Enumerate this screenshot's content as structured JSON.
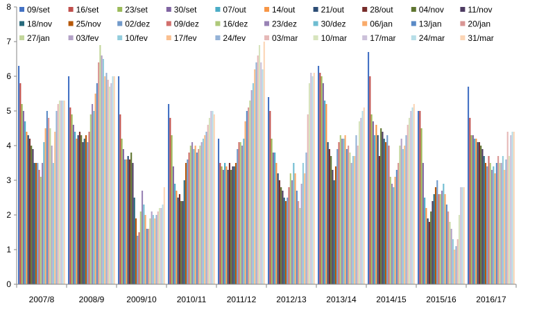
{
  "chart_data": {
    "type": "bar",
    "title": "",
    "xlabel": "",
    "ylabel": "",
    "ylim": [
      0,
      8
    ],
    "yticks": [
      "0",
      "1",
      "2",
      "3",
      "4",
      "5",
      "6",
      "7",
      "8"
    ],
    "grid": false,
    "legend_position": "top",
    "categories": [
      "2007/8",
      "2008/9",
      "2009/10",
      "2010/11",
      "2011/12",
      "2012/13",
      "2013/14",
      "2014/15",
      "2015/16",
      "2016/17"
    ],
    "series": [
      {
        "name": "09/set",
        "color": "#4472c4",
        "values": [
          6.3,
          6.0,
          6.0,
          5.2,
          4.2,
          5.4,
          6.3,
          6.7,
          5.0,
          5.7
        ]
      },
      {
        "name": "16/set",
        "color": "#c0504d",
        "values": [
          5.8,
          5.1,
          4.9,
          4.8,
          3.5,
          5.0,
          6.1,
          6.0,
          5.0,
          4.8
        ]
      },
      {
        "name": "23/set",
        "color": "#9bbb59",
        "values": [
          5.2,
          4.9,
          4.2,
          4.3,
          3.4,
          4.2,
          6.0,
          4.9,
          4.5,
          4.3
        ]
      },
      {
        "name": "30/set",
        "color": "#8064a2",
        "values": [
          5.0,
          4.6,
          3.9,
          3.4,
          3.3,
          3.8,
          5.8,
          4.7,
          3.5,
          4.3
        ]
      },
      {
        "name": "07/out",
        "color": "#4bacc6",
        "values": [
          4.7,
          4.4,
          3.6,
          2.9,
          3.5,
          3.8,
          5.3,
          4.3,
          2.5,
          4.2
        ]
      },
      {
        "name": "14/out",
        "color": "#f79646",
        "values": [
          4.4,
          4.2,
          3.6,
          2.7,
          3.4,
          3.5,
          5.2,
          4.6,
          2.2,
          4.2
        ]
      },
      {
        "name": "21/out",
        "color": "#2c4d75",
        "values": [
          4.3,
          4.3,
          3.7,
          2.5,
          3.3,
          3.2,
          4.1,
          4.3,
          1.9,
          4.1
        ]
      },
      {
        "name": "28/out",
        "color": "#772c2a",
        "values": [
          4.2,
          4.4,
          3.6,
          2.6,
          3.5,
          3.0,
          3.9,
          3.7,
          1.8,
          4.1
        ]
      },
      {
        "name": "04/nov",
        "color": "#5f7530",
        "values": [
          4.0,
          4.3,
          3.8,
          2.4,
          3.3,
          2.8,
          3.7,
          4.5,
          2.1,
          4.0
        ]
      },
      {
        "name": "11/nov",
        "color": "#4d3b62",
        "values": [
          3.9,
          4.1,
          3.5,
          2.4,
          3.4,
          2.7,
          3.3,
          4.4,
          2.4,
          3.9
        ]
      },
      {
        "name": "18/nov",
        "color": "#276a7c",
        "values": [
          3.5,
          4.2,
          2.5,
          3.0,
          3.4,
          2.5,
          3.0,
          4.2,
          2.6,
          3.7
        ]
      },
      {
        "name": "25/nov",
        "color": "#b65708",
        "values": [
          3.5,
          4.3,
          1.9,
          3.5,
          3.5,
          2.4,
          3.4,
          4.1,
          2.8,
          3.5
        ]
      },
      {
        "name": "02/dez",
        "color": "#729aca",
        "values": [
          3.5,
          4.1,
          1.4,
          3.6,
          3.9,
          2.5,
          3.9,
          4.3,
          3.0,
          3.4
        ]
      },
      {
        "name": "09/dez",
        "color": "#d16f6c",
        "values": [
          3.3,
          4.4,
          1.5,
          3.8,
          4.1,
          2.8,
          4.1,
          4.0,
          2.6,
          3.7
        ]
      },
      {
        "name": "16/dez",
        "color": "#afc97a",
        "values": [
          3.1,
          4.9,
          2.1,
          4.0,
          4.1,
          3.2,
          4.3,
          3.1,
          2.6,
          3.5
        ]
      },
      {
        "name": "23/dez",
        "color": "#9983b5",
        "values": [
          3.5,
          5.2,
          2.7,
          4.1,
          4.0,
          3.0,
          4.2,
          2.9,
          2.7,
          3.3
        ]
      },
      {
        "name": "30/dez",
        "color": "#6fbdd1",
        "values": [
          4.1,
          5.0,
          2.3,
          3.9,
          4.2,
          3.5,
          4.2,
          2.8,
          2.9,
          3.4
        ]
      },
      {
        "name": "06/jan",
        "color": "#f9ab6b",
        "values": [
          4.5,
          5.5,
          2.0,
          4.0,
          4.7,
          3.2,
          4.3,
          3.1,
          2.6,
          3.2
        ]
      },
      {
        "name": "13/jan",
        "color": "#5a8ac6",
        "values": [
          5.0,
          5.8,
          1.6,
          3.8,
          5.0,
          2.7,
          3.9,
          3.3,
          2.3,
          3.5
        ]
      },
      {
        "name": "20/jan",
        "color": "#d99694",
        "values": [
          4.8,
          6.4,
          1.6,
          3.9,
          5.1,
          2.4,
          4.0,
          3.5,
          2.1,
          3.7
        ]
      },
      {
        "name": "27/jan",
        "color": "#c3d69b",
        "values": [
          4.5,
          6.9,
          1.9,
          4.0,
          5.3,
          2.2,
          3.8,
          4.0,
          1.8,
          3.5
        ]
      },
      {
        "name": "03/fev",
        "color": "#b3a2c7",
        "values": [
          4.0,
          6.6,
          2.1,
          4.1,
          5.6,
          2.9,
          3.5,
          4.2,
          1.6,
          3.5
        ]
      },
      {
        "name": "10/fev",
        "color": "#93cddd",
        "values": [
          3.5,
          6.5,
          2.0,
          4.2,
          5.8,
          3.5,
          3.7,
          3.9,
          1.3,
          3.7
        ]
      },
      {
        "name": "17/fev",
        "color": "#fac090",
        "values": [
          4.4,
          6.0,
          1.9,
          4.3,
          6.2,
          3.2,
          3.7,
          4.0,
          1.0,
          3.3
        ]
      },
      {
        "name": "24/fev",
        "color": "#95b3d7",
        "values": [
          5.0,
          6.1,
          2.0,
          4.4,
          6.4,
          3.8,
          4.3,
          4.3,
          1.1,
          3.6
        ]
      },
      {
        "name": "03/mar",
        "color": "#e6b9b8",
        "values": [
          5.2,
          5.9,
          2.1,
          4.6,
          6.6,
          4.9,
          4.0,
          4.6,
          1.3,
          4.4
        ]
      },
      {
        "name": "10/mar",
        "color": "#d7e4bd",
        "values": [
          5.3,
          5.7,
          2.2,
          4.8,
          6.9,
          5.8,
          4.7,
          4.8,
          2.0,
          3.7
        ]
      },
      {
        "name": "17/mar",
        "color": "#ccc1da",
        "values": [
          5.3,
          5.8,
          2.2,
          5.0,
          6.4,
          6.1,
          4.8,
          5.0,
          2.8,
          4.3
        ]
      },
      {
        "name": "24/mar",
        "color": "#b7dee8",
        "values": [
          5.3,
          6.0,
          2.3,
          5.0,
          6.2,
          6.0,
          5.0,
          5.1,
          2.8,
          4.4
        ]
      },
      {
        "name": "31/mar",
        "color": "#fcd5b5",
        "values": [
          5.3,
          6.0,
          2.8,
          4.9,
          7.0,
          6.1,
          5.1,
          5.2,
          2.8,
          4.4
        ]
      }
    ]
  }
}
